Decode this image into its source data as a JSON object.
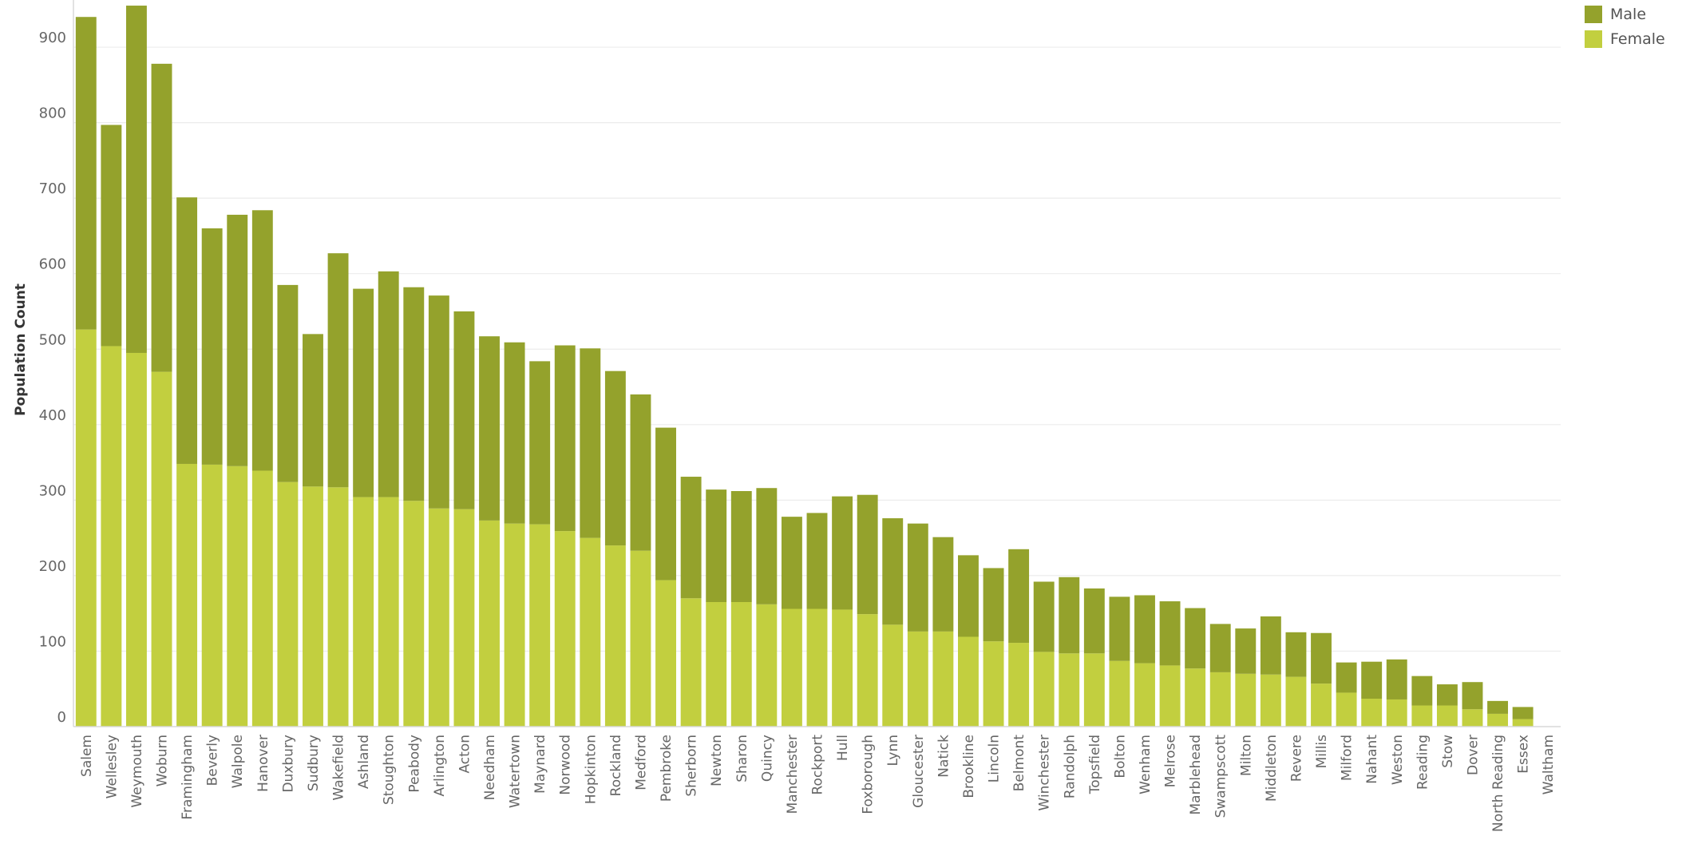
{
  "chart_data": {
    "type": "bar",
    "stacked": true,
    "ylabel": "Population Count",
    "xlabel": "",
    "ylim": [
      0,
      950
    ],
    "yticks": [
      0,
      100,
      200,
      300,
      400,
      500,
      600,
      700,
      800,
      900
    ],
    "grid": true,
    "legend_position": "top-right",
    "categories": [
      "Salem",
      "Wellesley",
      "Weymouth",
      "Woburn",
      "Framingham",
      "Beverly",
      "Walpole",
      "Hanover",
      "Duxbury",
      "Sudbury",
      "Wakefield",
      "Ashland",
      "Stoughton",
      "Peabody",
      "Arlington",
      "Acton",
      "Needham",
      "Watertown",
      "Maynard",
      "Norwood",
      "Hopkinton",
      "Rockland",
      "Medford",
      "Pembroke",
      "Sherborn",
      "Newton",
      "Sharon",
      "Quincy",
      "Manchester",
      "Rockport",
      "Hull",
      "Foxborough",
      "Lynn",
      "Gloucester",
      "Natick",
      "Brookline",
      "Lincoln",
      "Belmont",
      "Winchester",
      "Randolph",
      "Topsfield",
      "Bolton",
      "Wenham",
      "Melrose",
      "Marblehead",
      "Swampscott",
      "Milton",
      "Middleton",
      "Revere",
      "Millis",
      "Milford",
      "Nahant",
      "Weston",
      "Reading",
      "Stow",
      "Dover",
      "North Reading",
      "Essex",
      "Waltham"
    ],
    "series": [
      {
        "name": "Female",
        "color": "#c2cf3f",
        "values": [
          526,
          504,
          495,
          470,
          348,
          347,
          345,
          339,
          324,
          318,
          317,
          304,
          304,
          299,
          289,
          288,
          273,
          269,
          268,
          259,
          250,
          240,
          233,
          194,
          170,
          165,
          165,
          162,
          156,
          156,
          155,
          149,
          135,
          126,
          126,
          119,
          113,
          111,
          99,
          97,
          97,
          87,
          84,
          81,
          77,
          72,
          70,
          69,
          66,
          57,
          45,
          37,
          36,
          28,
          28,
          23,
          17,
          10,
          0
        ]
      },
      {
        "name": "Male",
        "color": "#94a22c",
        "values": [
          414,
          293,
          460,
          408,
          353,
          313,
          333,
          345,
          261,
          202,
          310,
          276,
          299,
          283,
          282,
          262,
          244,
          240,
          216,
          246,
          251,
          231,
          207,
          202,
          161,
          149,
          147,
          154,
          122,
          127,
          150,
          158,
          141,
          143,
          125,
          108,
          97,
          124,
          93,
          101,
          86,
          85,
          90,
          85,
          80,
          64,
          60,
          77,
          59,
          67,
          40,
          49,
          53,
          39,
          28,
          36,
          17,
          16,
          0
        ]
      }
    ]
  },
  "legend": {
    "items": [
      {
        "label": "Male",
        "color": "#94a22c"
      },
      {
        "label": "Female",
        "color": "#c2cf3f"
      }
    ]
  }
}
